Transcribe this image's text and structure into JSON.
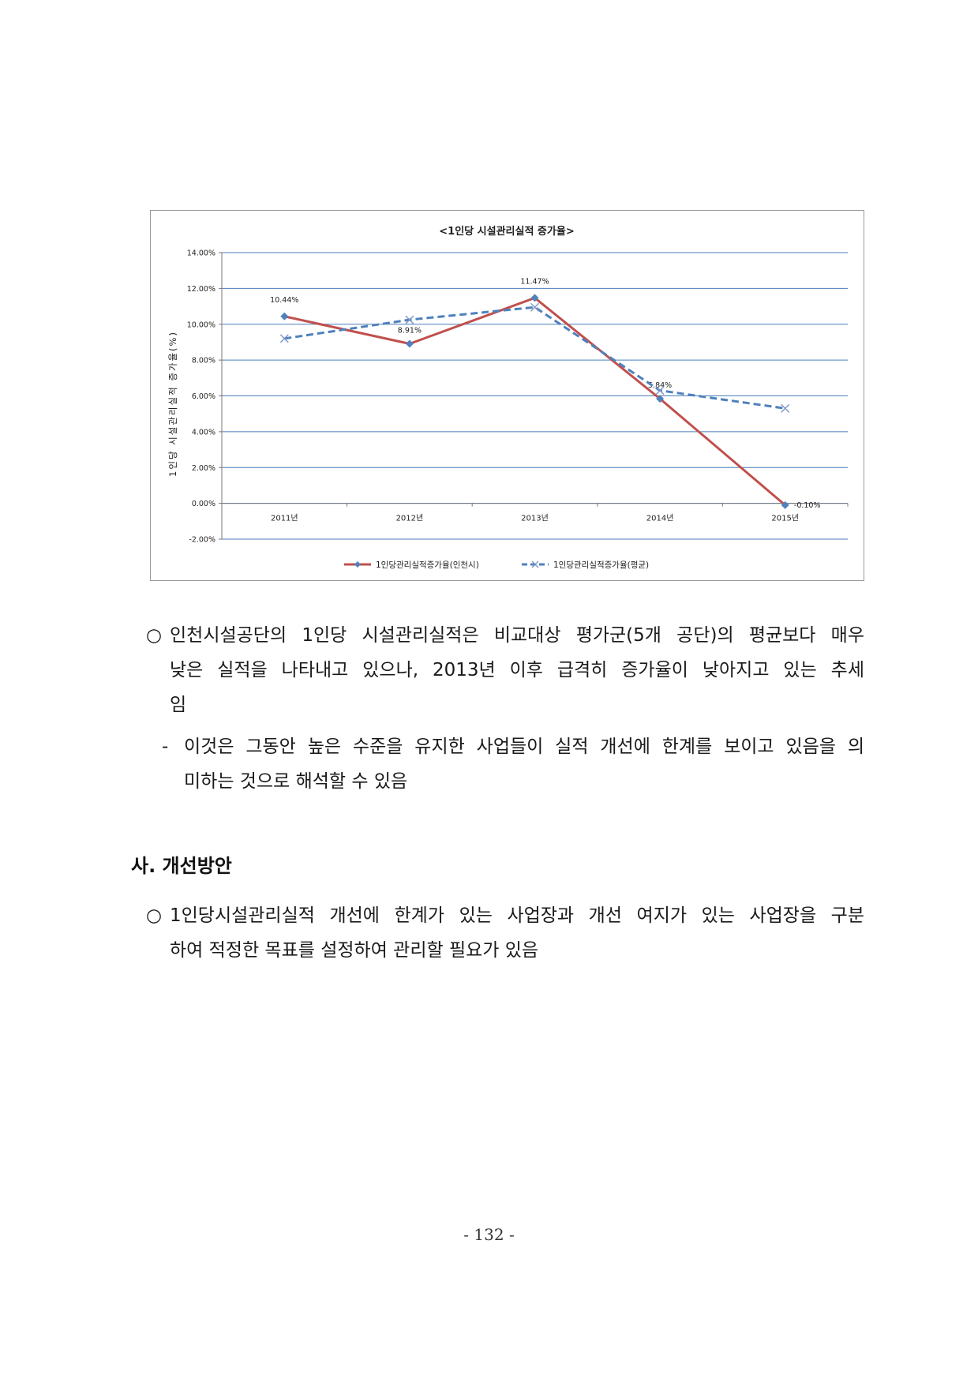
{
  "chart_data": {
    "type": "line",
    "title": "<1인당 시설관리실적 증가율>",
    "ylabel": "1인당 시설관리실적 증가율(%)",
    "categories": [
      "2011년",
      "2012년",
      "2013년",
      "2014년",
      "2015년"
    ],
    "ylim": [
      -2.0,
      14.0
    ],
    "yticks": [
      "14.00%",
      "12.00%",
      "10.00%",
      "8.00%",
      "6.00%",
      "4.00%",
      "2.00%",
      "0.00%",
      "-2.00%"
    ],
    "grid": true,
    "legend_position": "bottom",
    "series": [
      {
        "name": "1인당관리실적증가율(인천시)",
        "values": [
          10.44,
          8.91,
          11.47,
          5.84,
          -0.1
        ],
        "labels": [
          "10.44%",
          "8.91%",
          "11.47%",
          "5.84%",
          "-0.10%"
        ],
        "color": "#c0504d",
        "marker": "diamond",
        "style": "solid"
      },
      {
        "name": "1인당관리실적증가율(평균)",
        "values": [
          9.2,
          10.25,
          10.95,
          6.3,
          5.3
        ],
        "color": "#4f81bd",
        "marker": "x",
        "style": "dashed"
      }
    ]
  },
  "paragraphs": {
    "p1": {
      "bullet": "○",
      "lines": [
        "인천시설공단의 1인당 시설관리실적은 비교대상 평가군(5개 공단)의 평균보다 매우",
        "낮은 실적을 나타내고 있으나, 2013년 이후 급격히 증가율이 낮아지고 있는 추세",
        "임"
      ]
    },
    "p2": {
      "bullet": "-",
      "lines": [
        "이것은 그동안 높은 수준을 유지한 사업들이 실적 개선에 한계를 보이고 있음을 의",
        "미하는 것으로 해석할 수 있음"
      ]
    },
    "section_title": "사. 개선방안",
    "p3": {
      "bullet": "○",
      "lines": [
        "1인당시설관리실적 개선에 한계가 있는 사업장과 개선 여지가 있는 사업장을 구분",
        "하여 적정한 목표를 설정하여 관리할 필요가 있음"
      ]
    }
  },
  "page_number": "- 132 -"
}
